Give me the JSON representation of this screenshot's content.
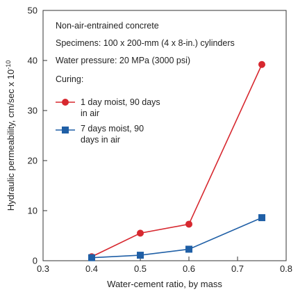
{
  "chart_data": {
    "type": "line",
    "title": "",
    "xlabel": "Water-cement ratio, by mass",
    "ylabel": "Hydraulic permeability, cm/sec x 10",
    "ylabel_exponent": "-10",
    "xlim": [
      0.3,
      0.8
    ],
    "ylim": [
      0,
      50
    ],
    "x_ticks": [
      0.3,
      0.4,
      0.5,
      0.6,
      0.7,
      0.8
    ],
    "x_tick_labels": [
      "0.3",
      "0.4",
      "0.5",
      "0.6",
      "0.7",
      "0.8"
    ],
    "y_ticks": [
      0,
      10,
      20,
      30,
      40,
      50
    ],
    "y_tick_labels": [
      "0",
      "10",
      "20",
      "30",
      "40",
      "50"
    ],
    "grid": false,
    "notes": [
      "Non-air-entrained concrete",
      "Specimens: 100 x 200-mm (4 x 8-in.) cylinders",
      "Water pressure: 20 MPa (3000 psi)",
      "Curing:"
    ],
    "series": [
      {
        "name_lines": [
          "1 day moist, 90 days",
          "in air"
        ],
        "color": "#d7282f",
        "marker": "circle",
        "x": [
          0.4,
          0.5,
          0.6,
          0.75
        ],
        "y": [
          0.8,
          5.5,
          7.3,
          39.2
        ]
      },
      {
        "name_lines": [
          "7 days moist, 90",
          "days in air"
        ],
        "color": "#1f5fa6",
        "marker": "square",
        "x": [
          0.4,
          0.5,
          0.6,
          0.75
        ],
        "y": [
          0.6,
          1.1,
          2.3,
          8.6
        ]
      }
    ]
  }
}
